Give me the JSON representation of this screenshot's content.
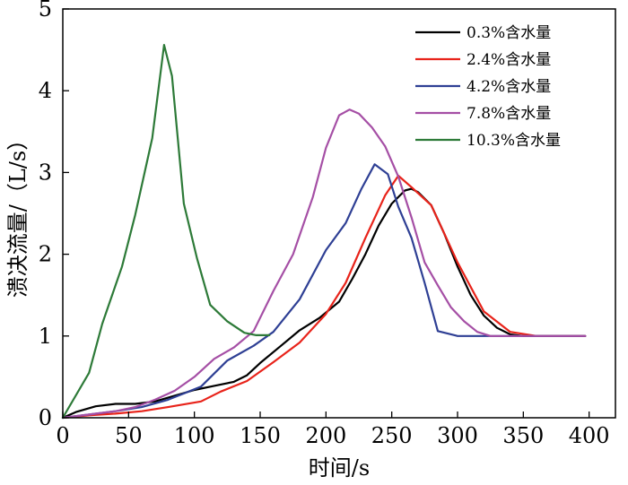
{
  "chart_data": {
    "type": "line",
    "title": "",
    "xlabel": "时间/s",
    "ylabel": "溃决流量/（L/s）",
    "xlim": [
      0,
      420
    ],
    "ylim": [
      0,
      5
    ],
    "xticks": [
      0,
      50,
      100,
      150,
      200,
      250,
      300,
      350,
      400
    ],
    "yticks": [
      0,
      1,
      2,
      3,
      4,
      5
    ],
    "legend_position": "top-right",
    "grid": false,
    "series": [
      {
        "name": "0.3%含水量",
        "color": "#000000",
        "x": [
          0,
          10,
          25,
          40,
          55,
          70,
          85,
          100,
          115,
          130,
          140,
          150,
          165,
          180,
          195,
          210,
          220,
          230,
          240,
          250,
          260,
          265,
          270,
          280,
          290,
          300,
          310,
          320,
          330,
          340,
          350,
          360,
          380,
          397
        ],
        "y": [
          0,
          0.07,
          0.14,
          0.17,
          0.17,
          0.2,
          0.27,
          0.34,
          0.39,
          0.44,
          0.52,
          0.67,
          0.87,
          1.07,
          1.22,
          1.42,
          1.7,
          2.0,
          2.35,
          2.62,
          2.78,
          2.8,
          2.76,
          2.6,
          2.25,
          1.85,
          1.5,
          1.25,
          1.1,
          1.02,
          1.0,
          1.0,
          1.0,
          1.0
        ]
      },
      {
        "name": "2.4%含水量",
        "color": "#e8231a",
        "x": [
          0,
          20,
          40,
          60,
          80,
          105,
          120,
          140,
          160,
          180,
          200,
          215,
          230,
          245,
          255,
          265,
          280,
          300,
          320,
          340,
          360,
          380,
          397
        ],
        "y": [
          0,
          0.03,
          0.05,
          0.08,
          0.13,
          0.2,
          0.32,
          0.45,
          0.68,
          0.92,
          1.27,
          1.65,
          2.2,
          2.72,
          2.96,
          2.82,
          2.6,
          1.9,
          1.3,
          1.05,
          1.0,
          1.0,
          1.0
        ]
      },
      {
        "name": "4.2%含水量",
        "color": "#2e3f94",
        "x": [
          0,
          20,
          40,
          60,
          80,
          105,
          125,
          145,
          160,
          180,
          200,
          215,
          227,
          237,
          247,
          255,
          265,
          275,
          285,
          300,
          320,
          340,
          360,
          397
        ],
        "y": [
          0,
          0.04,
          0.08,
          0.13,
          0.22,
          0.38,
          0.7,
          0.88,
          1.05,
          1.45,
          2.05,
          2.38,
          2.8,
          3.1,
          2.98,
          2.58,
          2.2,
          1.65,
          1.06,
          1.0,
          1.0,
          1.0,
          1.0,
          1.0
        ]
      },
      {
        "name": "7.8%含水量",
        "color": "#a54fa5",
        "x": [
          0,
          20,
          40,
          55,
          70,
          85,
          100,
          115,
          130,
          145,
          160,
          175,
          190,
          200,
          210,
          218,
          225,
          235,
          245,
          255,
          265,
          275,
          285,
          295,
          305,
          315,
          325,
          335,
          350,
          370,
          397
        ],
        "y": [
          0,
          0.04,
          0.08,
          0.13,
          0.22,
          0.33,
          0.5,
          0.72,
          0.86,
          1.06,
          1.55,
          2.0,
          2.7,
          3.3,
          3.7,
          3.77,
          3.72,
          3.55,
          3.32,
          2.95,
          2.45,
          1.9,
          1.62,
          1.35,
          1.18,
          1.05,
          1.0,
          1.0,
          1.0,
          1.0,
          1.0
        ]
      },
      {
        "name": "10.3%含水量",
        "color": "#2d7a38",
        "x": [
          0,
          20,
          30,
          45,
          55,
          68,
          77,
          83,
          92,
          102,
          112,
          125,
          138,
          147,
          157
        ],
        "y": [
          0,
          0.55,
          1.15,
          1.85,
          2.48,
          3.42,
          4.56,
          4.18,
          2.62,
          1.95,
          1.38,
          1.18,
          1.04,
          1.01,
          1.01
        ]
      }
    ]
  }
}
